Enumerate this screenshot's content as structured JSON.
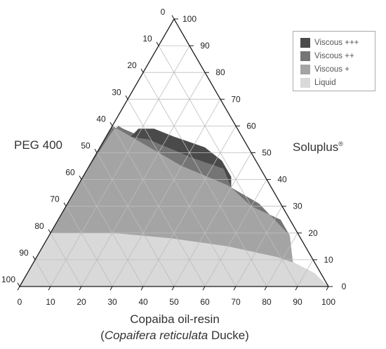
{
  "chart_data": {
    "type": "ternary-area",
    "axes": {
      "left": {
        "label": "PEG 400",
        "ticks": [
          0,
          10,
          20,
          30,
          40,
          50,
          60,
          70,
          80,
          90,
          100
        ]
      },
      "right": {
        "label": "Soluplus",
        "label_sup": "®",
        "ticks": [
          0,
          10,
          20,
          30,
          40,
          50,
          60,
          70,
          80,
          90,
          100
        ]
      },
      "bottom": {
        "label": "Copaiba oil-resin",
        "label_line2_paren_open": "(",
        "label_line2_italic": "Copaifera reticulata",
        "label_line2_rest": " Ducke)",
        "ticks": [
          0,
          10,
          20,
          30,
          40,
          50,
          60,
          70,
          80,
          90,
          100
        ]
      }
    },
    "grid": true,
    "legend": {
      "position": "top-right",
      "entries": [
        {
          "name": "Viscous +++",
          "color": "#4a4a4a"
        },
        {
          "name": "Viscous ++",
          "color": "#757575"
        },
        {
          "name": "Viscous +",
          "color": "#a4a4a4"
        },
        {
          "name": "Liquid",
          "color": "#d9d9d9"
        }
      ]
    },
    "regions": [
      {
        "name": "Liquid",
        "color": "#d9d9d9",
        "points": [
          [
            0,
            0
          ],
          [
            0,
            20
          ],
          [
            20,
            20
          ],
          [
            40,
            18
          ],
          [
            60,
            15
          ],
          [
            80,
            11
          ],
          [
            93,
            5
          ],
          [
            100,
            0
          ]
        ]
      },
      {
        "name": "Viscous +",
        "color": "#a4a4a4",
        "points": [
          [
            0,
            20
          ],
          [
            20,
            20
          ],
          [
            40,
            18
          ],
          [
            60,
            15
          ],
          [
            78,
            11
          ],
          [
            84,
            9
          ],
          [
            78,
            19
          ],
          [
            62,
            31
          ],
          [
            48,
            38
          ],
          [
            30,
            45
          ],
          [
            10,
            55
          ],
          [
            0,
            60
          ]
        ]
      },
      {
        "name": "Viscous ++",
        "color": "#757575",
        "points": [
          [
            0,
            42
          ],
          [
            0,
            60
          ],
          [
            10,
            55
          ],
          [
            30,
            45
          ],
          [
            48,
            38
          ],
          [
            62,
            31
          ],
          [
            78,
            19
          ],
          [
            72,
            25
          ],
          [
            60,
            30
          ],
          [
            50,
            37
          ],
          [
            44,
            44
          ],
          [
            32,
            48
          ],
          [
            14,
            55
          ],
          [
            4,
            59
          ],
          [
            2,
            60
          ],
          [
            1,
            58
          ]
        ]
      },
      {
        "name": "Viscous +++",
        "color": "#4a4a4a",
        "points": [
          [
            8,
            56
          ],
          [
            14,
            55
          ],
          [
            32,
            48
          ],
          [
            44,
            44
          ],
          [
            50,
            37
          ],
          [
            48,
            41
          ],
          [
            42,
            47
          ],
          [
            34,
            52
          ],
          [
            22,
            56
          ],
          [
            14,
            59
          ],
          [
            9,
            59
          ]
        ]
      }
    ]
  }
}
